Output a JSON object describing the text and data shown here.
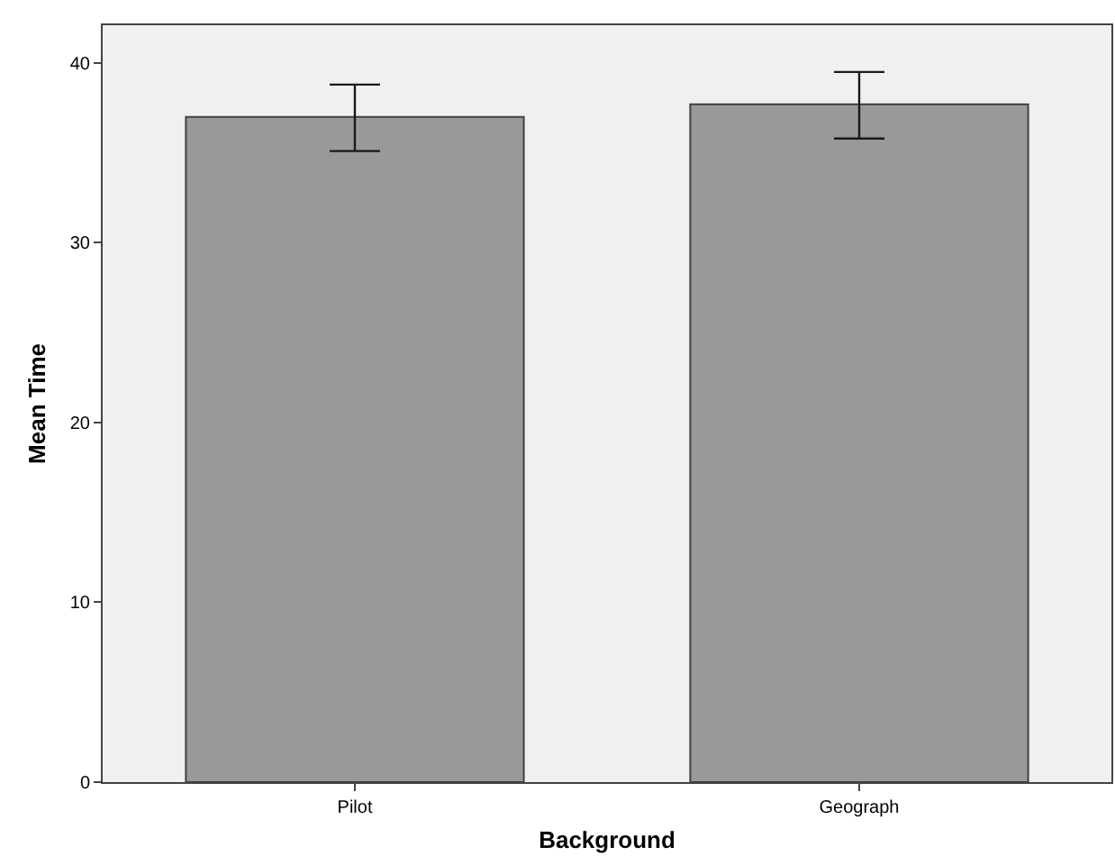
{
  "chart_data": {
    "type": "bar",
    "xlabel": "Background",
    "ylabel": "Mean Time",
    "categories": [
      "Pilot",
      "Geograph"
    ],
    "values": [
      37.0,
      37.7
    ],
    "errors": [
      [
        35.1,
        38.8
      ],
      [
        35.8,
        39.5
      ]
    ],
    "color": "#999999",
    "ylim": [
      0,
      42.1
    ],
    "yticks": [
      0,
      10,
      20,
      30,
      40
    ],
    "grid": false
  }
}
